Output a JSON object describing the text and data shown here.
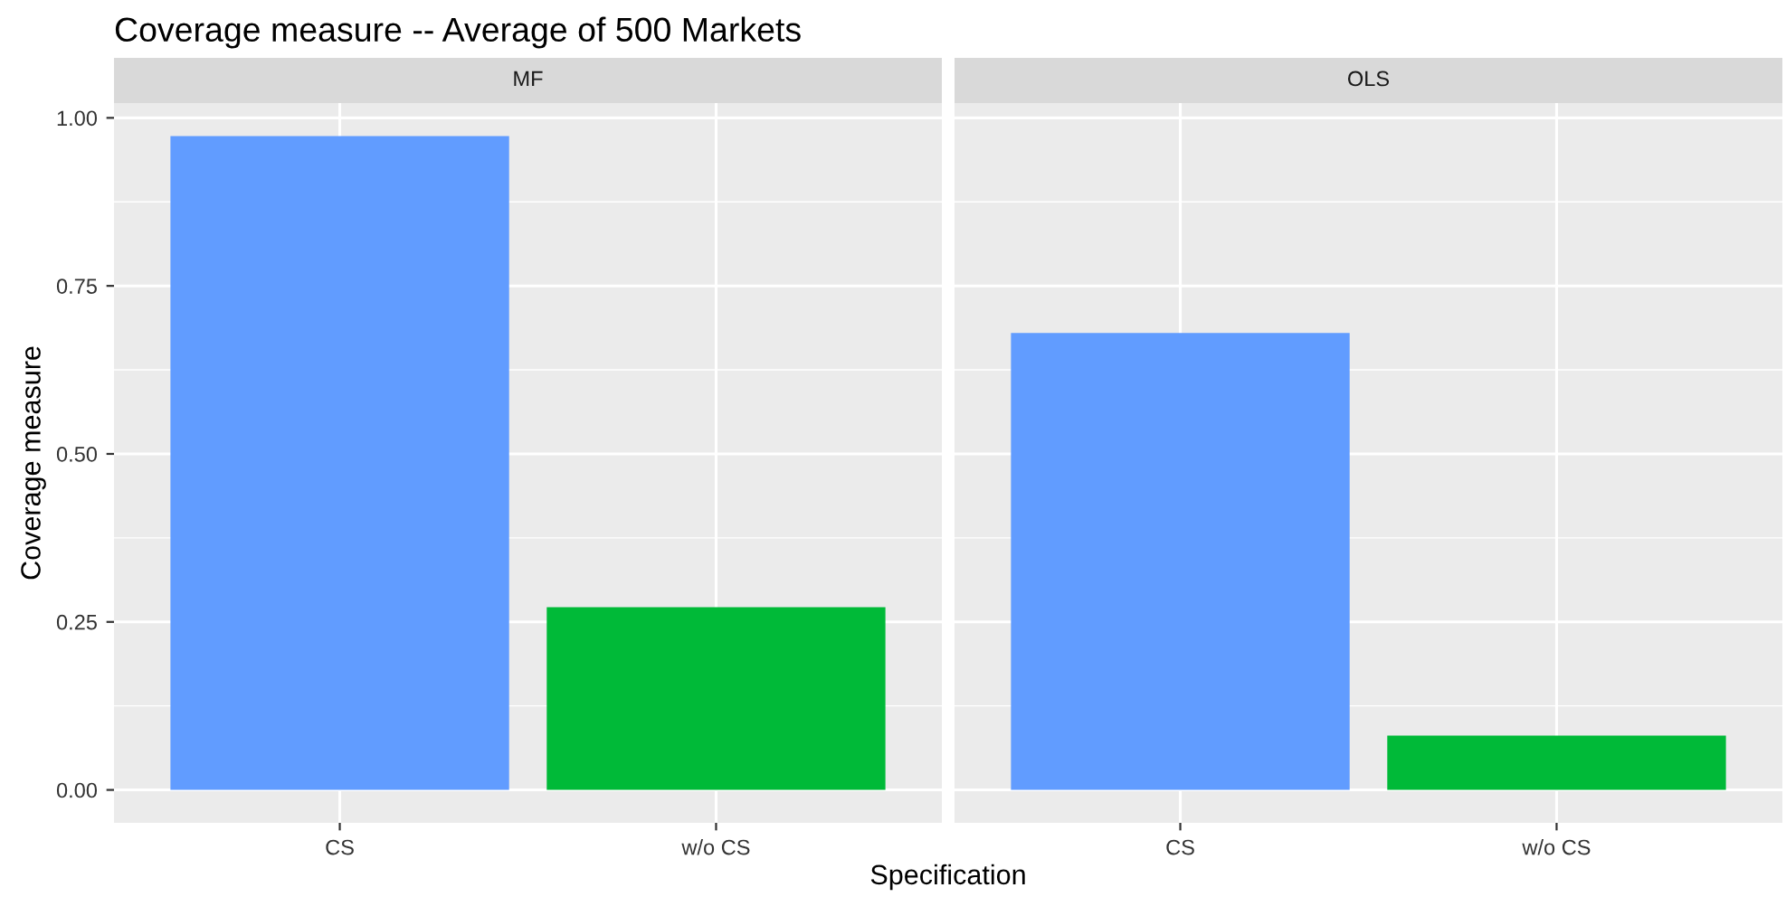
{
  "chart_data": [
    {
      "type": "bar",
      "title": "Coverage measure -- Average of 500 Markets",
      "subtitle": "MF",
      "xlabel": "Specification",
      "ylabel": "Coverage measure",
      "categories": [
        "CS",
        "w/o CS"
      ],
      "values": [
        0.973,
        0.272
      ],
      "colors": [
        "#619cff",
        "#00ba38"
      ],
      "ylim": [
        -0.049,
        1.022
      ],
      "yticks": [
        {
          "value": 0,
          "label": "0.00"
        },
        {
          "value": 0.25,
          "label": "0.25"
        },
        {
          "value": 0.5,
          "label": "0.50"
        },
        {
          "value": 0.75,
          "label": "0.75"
        },
        {
          "value": 1,
          "label": "1.00"
        }
      ],
      "grid": true
    },
    {
      "type": "bar",
      "subtitle": "OLS",
      "categories": [
        "CS",
        "w/o CS"
      ],
      "values": [
        0.68,
        0.081
      ],
      "colors": [
        "#619cff",
        "#00ba38"
      ],
      "ylim": [
        -0.049,
        1.022
      ],
      "yticks": [
        {
          "value": 0,
          "label": null
        },
        {
          "value": 0.25,
          "label": null
        },
        {
          "value": 0.5,
          "label": null
        },
        {
          "value": 0.75,
          "label": null
        },
        {
          "value": 1,
          "label": null
        }
      ],
      "grid": true,
      "tick_labels": "x"
    }
  ]
}
